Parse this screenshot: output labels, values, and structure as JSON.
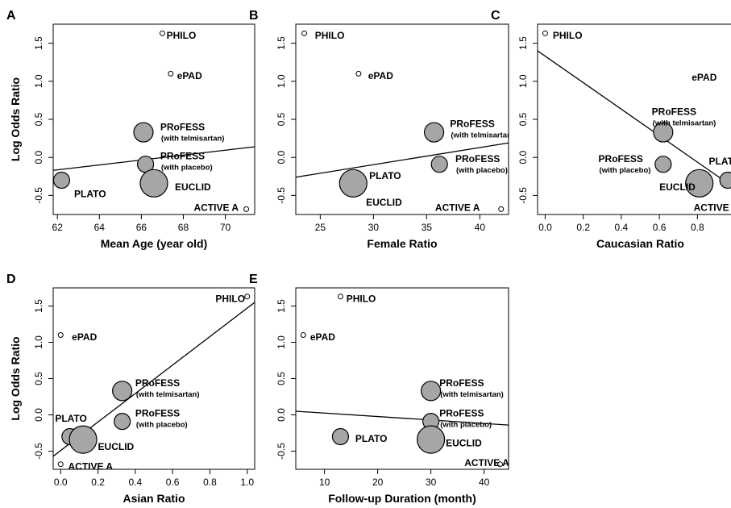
{
  "figure": {
    "ylabel": "Log Odds Ratio",
    "ylim": [
      -0.75,
      1.75
    ],
    "yticks": [
      -0.5,
      0.0,
      0.5,
      1.0,
      1.5
    ],
    "ytick_labels": [
      "-0.5",
      "0.0",
      "0.5",
      "1.0",
      "1.5"
    ]
  },
  "chart_data": [
    {
      "panel": "A",
      "type": "scatter",
      "xlabel": "Mean Age (year old)",
      "xlim": [
        61.8,
        71.4
      ],
      "xticks": [
        62,
        64,
        66,
        68,
        70
      ],
      "xtick_labels": [
        "62",
        "64",
        "66",
        "68",
        "70"
      ],
      "regression_line": [
        {
          "x": 61.8,
          "y": -0.17
        },
        {
          "x": 71.4,
          "y": 0.14
        }
      ],
      "points": [
        {
          "name": "PHILO",
          "x": 67.0,
          "y": 1.63,
          "r": 3,
          "label": "PHILO",
          "sublabel": "",
          "lx": 67.2,
          "ly": 1.6
        },
        {
          "name": "ePAD",
          "x": 67.4,
          "y": 1.1,
          "r": 3,
          "label": "ePAD",
          "sublabel": "",
          "lx": 67.7,
          "ly": 1.07
        },
        {
          "name": "PRoFESS (with telmisartan)",
          "x": 66.1,
          "y": 0.33,
          "r": 12,
          "label": "PRoFESS",
          "sublabel": "(with telmisartan)",
          "lx": 66.9,
          "ly": 0.4
        },
        {
          "name": "PRoFESS (with placebo)",
          "x": 66.2,
          "y": -0.09,
          "r": 10,
          "label": "PRoFESS",
          "sublabel": "(with placebo)",
          "lx": 66.9,
          "ly": 0.02
        },
        {
          "name": "PLATO",
          "x": 62.2,
          "y": -0.3,
          "r": 10,
          "label": "PLATO",
          "sublabel": "",
          "lx": 62.8,
          "ly": -0.48
        },
        {
          "name": "EUCLID",
          "x": 66.6,
          "y": -0.34,
          "r": 17,
          "label": "EUCLID",
          "sublabel": "",
          "lx": 67.6,
          "ly": -0.39
        },
        {
          "name": "ACTIVE A",
          "x": 71.0,
          "y": -0.68,
          "r": 3,
          "label": "ACTIVE A",
          "sublabel": "",
          "lx": 68.5,
          "ly": -0.66
        }
      ]
    },
    {
      "panel": "B",
      "type": "scatter",
      "xlabel": "Female Ratio",
      "xlim": [
        22.7,
        42.7
      ],
      "xticks": [
        25,
        30,
        35,
        40
      ],
      "xtick_labels": [
        "25",
        "30",
        "35",
        "40"
      ],
      "regression_line": [
        {
          "x": 22.7,
          "y": -0.26
        },
        {
          "x": 42.7,
          "y": 0.19
        }
      ],
      "points": [
        {
          "name": "PHILO",
          "x": 23.5,
          "y": 1.63,
          "r": 3,
          "label": "PHILO",
          "sublabel": "",
          "lx": 24.5,
          "ly": 1.6
        },
        {
          "name": "ePAD",
          "x": 28.6,
          "y": 1.1,
          "r": 3,
          "label": "ePAD",
          "sublabel": "",
          "lx": 29.5,
          "ly": 1.07
        },
        {
          "name": "PRoFESS (with telmisartan)",
          "x": 35.7,
          "y": 0.33,
          "r": 12,
          "label": "PRoFESS",
          "sublabel": "(with telmisartan)",
          "lx": 37.2,
          "ly": 0.44
        },
        {
          "name": "PRoFESS (with placebo)",
          "x": 36.2,
          "y": -0.09,
          "r": 10,
          "label": "PRoFESS",
          "sublabel": "(with placebo)",
          "lx": 37.7,
          "ly": -0.02
        },
        {
          "name": "PLATO",
          "x": 28.4,
          "y": -0.3,
          "r": 10,
          "label": "PLATO",
          "sublabel": "",
          "lx": 29.6,
          "ly": -0.24
        },
        {
          "name": "EUCLID",
          "x": 28.1,
          "y": -0.34,
          "r": 17,
          "label": "EUCLID",
          "sublabel": "",
          "lx": 29.3,
          "ly": -0.59
        },
        {
          "name": "ACTIVE A",
          "x": 42.0,
          "y": -0.68,
          "r": 3,
          "label": "ACTIVE A",
          "sublabel": "",
          "lx": 35.8,
          "ly": -0.66
        }
      ]
    },
    {
      "panel": "C",
      "type": "scatter",
      "xlabel": "Caucasian Ratio",
      "xlim": [
        -0.04,
        1.04
      ],
      "xticks": [
        0.0,
        0.2,
        0.4,
        0.6,
        0.8
      ],
      "xtick_labels": [
        "0.0",
        "0.2",
        "0.4",
        "0.6",
        "0.8"
      ],
      "regression_line": [
        {
          "x": -0.04,
          "y": 1.4
        },
        {
          "x": 1.04,
          "y": -0.48
        }
      ],
      "points": [
        {
          "name": "PHILO",
          "x": 0.0,
          "y": 1.63,
          "r": 3,
          "label": "PHILO",
          "sublabel": "",
          "lx": 0.04,
          "ly": 1.6
        },
        {
          "name": "ePAD",
          "x": 1.0,
          "y": 1.1,
          "r": 3,
          "label": "ePAD",
          "sublabel": "",
          "lx": 0.77,
          "ly": 1.05
        },
        {
          "name": "PRoFESS (with telmisartan)",
          "x": 0.62,
          "y": 0.33,
          "r": 12,
          "label": "PRoFESS",
          "sublabel": "(with telmisartan)",
          "lx": 0.56,
          "ly": 0.6
        },
        {
          "name": "PRoFESS (with placebo)",
          "x": 0.62,
          "y": -0.09,
          "r": 10,
          "label": "PRoFESS",
          "sublabel": "(with placebo)",
          "lx": 0.28,
          "ly": -0.02
        },
        {
          "name": "PLATO",
          "x": 0.96,
          "y": -0.3,
          "r": 10,
          "label": "PLATO",
          "sublabel": "",
          "lx": 0.86,
          "ly": -0.05
        },
        {
          "name": "EUCLID",
          "x": 0.81,
          "y": -0.34,
          "r": 17,
          "label": "EUCLID",
          "sublabel": "",
          "lx": 0.6,
          "ly": -0.39
        },
        {
          "name": "ACTIVE A",
          "x": 1.0,
          "y": -0.68,
          "r": 3,
          "label": "ACTIVE A",
          "sublabel": "",
          "lx": 0.78,
          "ly": -0.66
        }
      ]
    },
    {
      "panel": "D",
      "type": "scatter",
      "xlabel": "Asian Ratio",
      "xlim": [
        -0.04,
        1.04
      ],
      "xticks": [
        0.0,
        0.2,
        0.4,
        0.6,
        0.8,
        1.0
      ],
      "xtick_labels": [
        "0.0",
        "0.2",
        "0.4",
        "0.6",
        "0.8",
        "1.0"
      ],
      "regression_line": [
        {
          "x": -0.04,
          "y": -0.57
        },
        {
          "x": 1.04,
          "y": 1.55
        }
      ],
      "points": [
        {
          "name": "PHILO",
          "x": 1.0,
          "y": 1.63,
          "r": 3,
          "label": "PHILO",
          "sublabel": "",
          "lx": 0.83,
          "ly": 1.6
        },
        {
          "name": "ePAD",
          "x": 0.0,
          "y": 1.1,
          "r": 3,
          "label": "ePAD",
          "sublabel": "",
          "lx": 0.06,
          "ly": 1.07
        },
        {
          "name": "PRoFESS (with telmisartan)",
          "x": 0.33,
          "y": 0.33,
          "r": 12,
          "label": "PRoFESS",
          "sublabel": "(with telmisartan)",
          "lx": 0.4,
          "ly": 0.44
        },
        {
          "name": "PRoFESS (with placebo)",
          "x": 0.33,
          "y": -0.09,
          "r": 10,
          "label": "PRoFESS",
          "sublabel": "(with placebo)",
          "lx": 0.4,
          "ly": 0.02
        },
        {
          "name": "PLATO",
          "x": 0.05,
          "y": -0.3,
          "r": 10,
          "label": "PLATO",
          "sublabel": "",
          "lx": -0.03,
          "ly": -0.05
        },
        {
          "name": "EUCLID",
          "x": 0.12,
          "y": -0.34,
          "r": 17,
          "label": "EUCLID",
          "sublabel": "",
          "lx": 0.2,
          "ly": -0.44
        },
        {
          "name": "ACTIVE A",
          "x": 0.0,
          "y": -0.68,
          "r": 3,
          "label": "ACTIVE A",
          "sublabel": "",
          "lx": 0.04,
          "ly": -0.71
        }
      ]
    },
    {
      "panel": "E",
      "type": "scatter",
      "xlabel": "Follow-up Duration (month)",
      "xlim": [
        4.6,
        44.6
      ],
      "xticks": [
        10,
        20,
        30,
        40
      ],
      "xtick_labels": [
        "10",
        "20",
        "30",
        "40"
      ],
      "regression_line": [
        {
          "x": 4.6,
          "y": 0.05
        },
        {
          "x": 44.6,
          "y": -0.14
        }
      ],
      "points": [
        {
          "name": "PHILO",
          "x": 13,
          "y": 1.63,
          "r": 3,
          "label": "PHILO",
          "sublabel": "",
          "lx": 14.1,
          "ly": 1.6
        },
        {
          "name": "ePAD",
          "x": 6,
          "y": 1.1,
          "r": 3,
          "label": "ePAD",
          "sublabel": "",
          "lx": 7.3,
          "ly": 1.07
        },
        {
          "name": "PRoFESS (with telmisartan)",
          "x": 30,
          "y": 0.33,
          "r": 12,
          "label": "PRoFESS",
          "sublabel": "(with telmisartan)",
          "lx": 31.6,
          "ly": 0.44
        },
        {
          "name": "PRoFESS (with placebo)",
          "x": 30,
          "y": -0.09,
          "r": 10,
          "label": "PRoFESS",
          "sublabel": "(with placebo)",
          "lx": 31.6,
          "ly": 0.02
        },
        {
          "name": "PLATO",
          "x": 13,
          "y": -0.3,
          "r": 10,
          "label": "PLATO",
          "sublabel": "",
          "lx": 15.8,
          "ly": -0.33
        },
        {
          "name": "EUCLID",
          "x": 30,
          "y": -0.34,
          "r": 17,
          "label": "EUCLID",
          "sublabel": "",
          "lx": 32.8,
          "ly": -0.39
        },
        {
          "name": "ACTIVE A",
          "x": 43,
          "y": -0.68,
          "r": 3,
          "label": "ACTIVE A",
          "sublabel": "",
          "lx": 36.3,
          "ly": -0.66
        }
      ]
    }
  ]
}
